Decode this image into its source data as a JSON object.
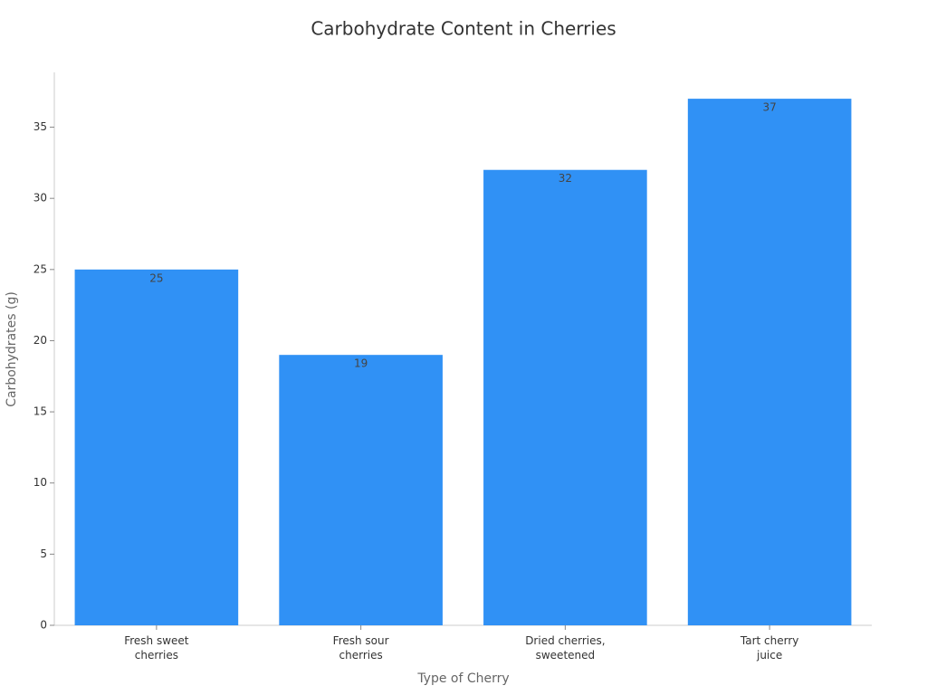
{
  "chart_data": {
    "type": "bar",
    "title": "Carbohydrate Content in Cherries",
    "x_label": "Type of Cherry",
    "y_label": "Carbohydrates (g)",
    "categories": [
      "Fresh sweet\ncherries",
      "Fresh sour\ncherries",
      "Dried cherries,\nsweetened",
      "Tart cherry\njuice"
    ],
    "values": [
      25,
      19,
      32,
      37
    ],
    "color": "#3091f5",
    "ylim": [
      0,
      38.85
    ],
    "yticks": [
      0,
      5,
      10,
      15,
      20,
      25,
      30,
      35
    ],
    "grid": false
  }
}
